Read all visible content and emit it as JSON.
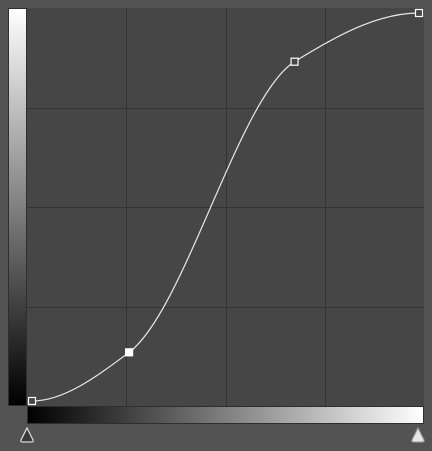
{
  "curve": {
    "channel": "RGB",
    "grid_divisions": 4,
    "points": [
      {
        "input": 0,
        "output": 0,
        "selected": false
      },
      {
        "input": 64,
        "output": 32,
        "selected": true
      },
      {
        "input": 173,
        "output": 223,
        "selected": false
      },
      {
        "input": 255,
        "output": 255,
        "selected": false
      }
    ]
  },
  "sliders": {
    "black_point": 0,
    "white_point": 255
  },
  "colors": {
    "panel_background": "#535353",
    "graph_background": "#464646",
    "grid_line": "#333333",
    "curve_line": "#e8e8e8",
    "point_fill_unselected": "#464646",
    "point_fill_selected": "#ffffff"
  }
}
